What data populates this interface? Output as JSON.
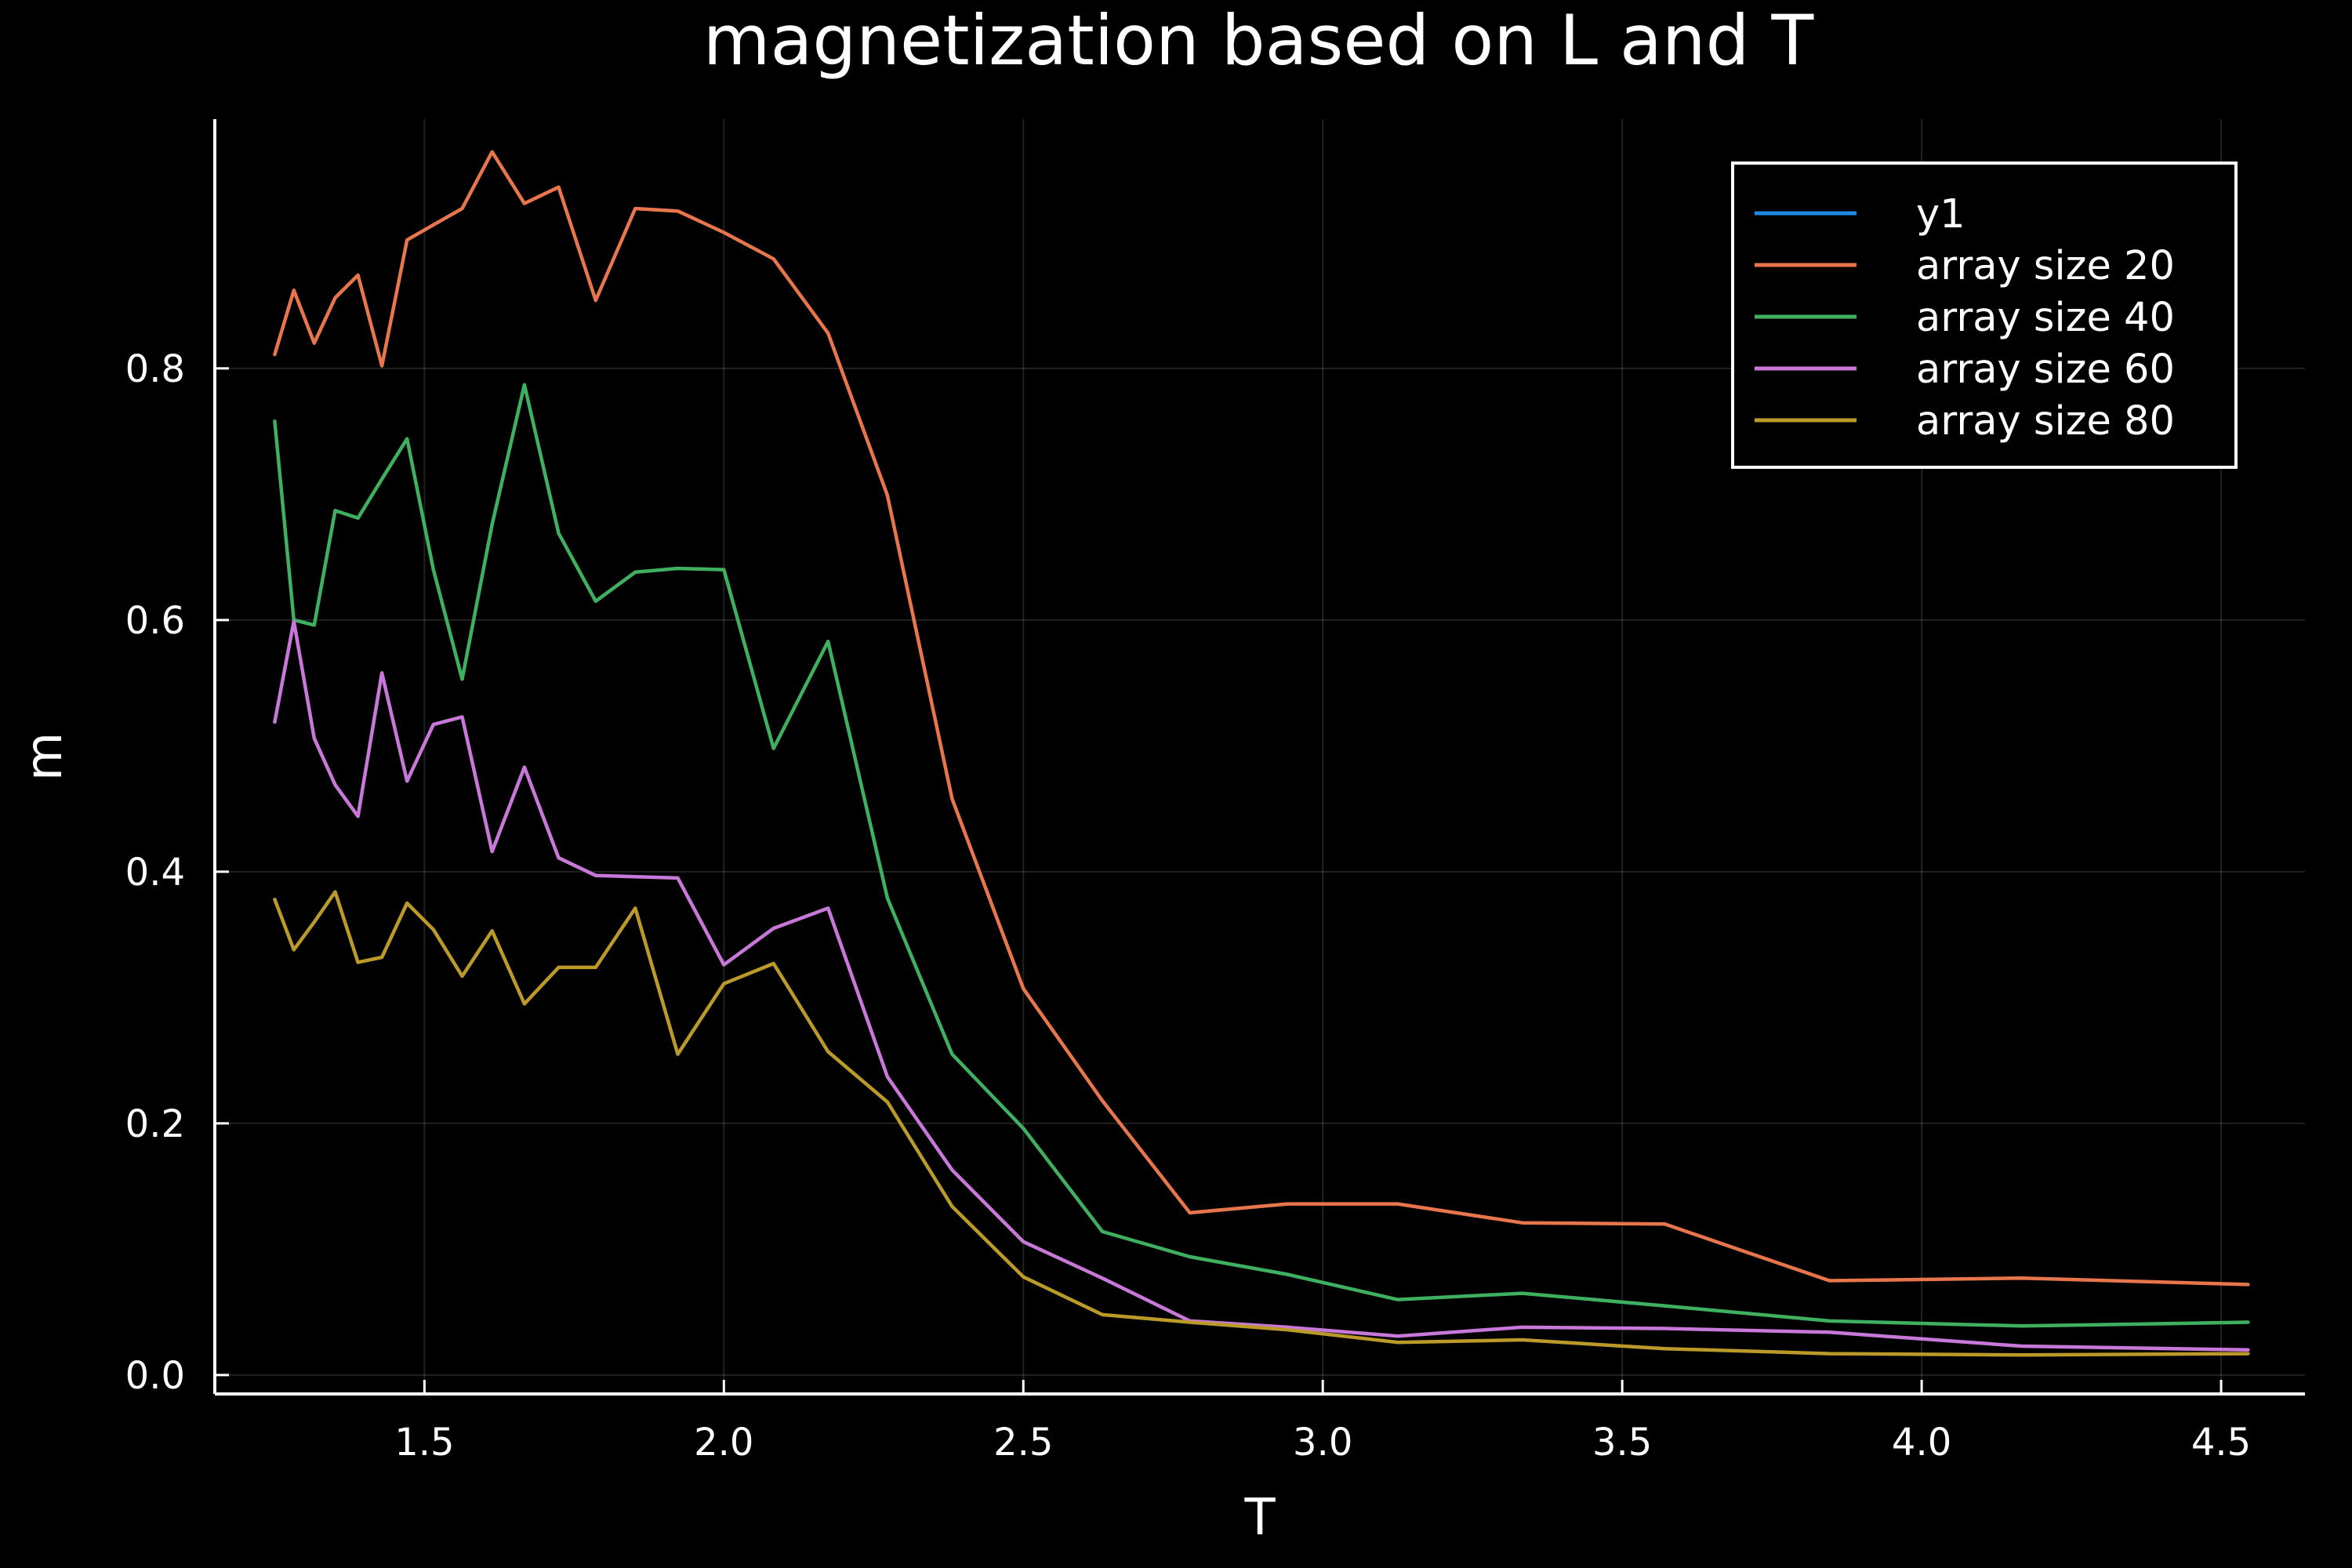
{
  "chart_data": {
    "type": "line",
    "title": "magnetization based on L and T",
    "xlabel": "T",
    "ylabel": "m",
    "xlim": [
      1.15,
      4.64
    ],
    "ylim": [
      -0.015,
      0.998
    ],
    "xticks": [
      1.5,
      2.0,
      2.5,
      3.0,
      3.5,
      4.0,
      4.5
    ],
    "xtick_labels": [
      "1.5",
      "2.0",
      "2.5",
      "3.0",
      "3.5",
      "4.0",
      "4.5"
    ],
    "yticks": [
      0.0,
      0.2,
      0.4,
      0.6,
      0.8
    ],
    "ytick_labels": [
      "0.0",
      "0.2",
      "0.4",
      "0.6",
      "0.8"
    ],
    "grid": true,
    "legend_position": "top-right",
    "background": "#000000",
    "series": [
      {
        "name": "y1",
        "color": "#1e88e5",
        "x": [],
        "y": []
      },
      {
        "name": "array size 20",
        "color": "#e8764d",
        "x": [
          1.25,
          1.282,
          1.316,
          1.351,
          1.389,
          1.429,
          1.471,
          1.515,
          1.563,
          1.613,
          1.667,
          1.724,
          1.786,
          1.852,
          1.923,
          2.0,
          2.083,
          2.174,
          2.273,
          2.381,
          2.5,
          2.632,
          2.778,
          2.941,
          3.125,
          3.333,
          3.571,
          3.846,
          4.167,
          4.545
        ],
        "y": [
          0.811,
          0.862,
          0.82,
          0.856,
          0.874,
          0.802,
          0.902,
          0.914,
          0.927,
          0.972,
          0.931,
          0.944,
          0.854,
          0.927,
          0.925,
          0.908,
          0.887,
          0.828,
          0.699,
          0.458,
          0.307,
          0.218,
          0.129,
          0.136,
          0.136,
          0.121,
          0.12,
          0.075,
          0.077,
          0.072
        ]
      },
      {
        "name": "array size 40",
        "color": "#3eb05f",
        "x": [
          1.25,
          1.282,
          1.316,
          1.351,
          1.389,
          1.429,
          1.471,
          1.515,
          1.563,
          1.613,
          1.667,
          1.724,
          1.786,
          1.852,
          1.923,
          2.0,
          2.083,
          2.174,
          2.273,
          2.381,
          2.5,
          2.632,
          2.778,
          2.941,
          3.125,
          3.333,
          3.571,
          3.846,
          4.167,
          4.545
        ],
        "y": [
          0.758,
          0.6,
          0.596,
          0.687,
          0.681,
          0.712,
          0.744,
          0.64,
          0.553,
          0.676,
          0.787,
          0.669,
          0.615,
          0.638,
          0.641,
          0.64,
          0.498,
          0.583,
          0.379,
          0.255,
          0.196,
          0.114,
          0.094,
          0.08,
          0.06,
          0.065,
          0.055,
          0.043,
          0.039,
          0.042
        ]
      },
      {
        "name": "array size 60",
        "color": "#c878d8",
        "x": [
          1.25,
          1.282,
          1.316,
          1.351,
          1.389,
          1.429,
          1.471,
          1.515,
          1.563,
          1.613,
          1.667,
          1.724,
          1.786,
          1.852,
          1.923,
          2.0,
          2.083,
          2.174,
          2.273,
          2.381,
          2.5,
          2.632,
          2.778,
          2.941,
          3.125,
          3.333,
          3.571,
          3.846,
          4.167,
          4.545
        ],
        "y": [
          0.519,
          0.599,
          0.506,
          0.469,
          0.444,
          0.558,
          0.472,
          0.517,
          0.523,
          0.416,
          0.483,
          0.411,
          0.397,
          0.396,
          0.395,
          0.326,
          0.355,
          0.371,
          0.237,
          0.163,
          0.106,
          0.077,
          0.043,
          0.038,
          0.031,
          0.038,
          0.037,
          0.034,
          0.023,
          0.02
        ]
      },
      {
        "name": "array size 80",
        "color": "#bb9a2a",
        "x": [
          1.25,
          1.282,
          1.316,
          1.351,
          1.389,
          1.429,
          1.471,
          1.515,
          1.563,
          1.613,
          1.667,
          1.724,
          1.786,
          1.852,
          1.923,
          2.0,
          2.083,
          2.174,
          2.273,
          2.381,
          2.5,
          2.632,
          2.778,
          2.941,
          3.125,
          3.333,
          3.571,
          3.846,
          4.167,
          4.545
        ],
        "y": [
          0.378,
          0.338,
          0.36,
          0.384,
          0.328,
          0.332,
          0.375,
          0.354,
          0.317,
          0.353,
          0.295,
          0.324,
          0.324,
          0.371,
          0.255,
          0.311,
          0.327,
          0.257,
          0.217,
          0.134,
          0.078,
          0.048,
          0.042,
          0.036,
          0.026,
          0.028,
          0.021,
          0.017,
          0.016,
          0.017
        ]
      }
    ]
  }
}
